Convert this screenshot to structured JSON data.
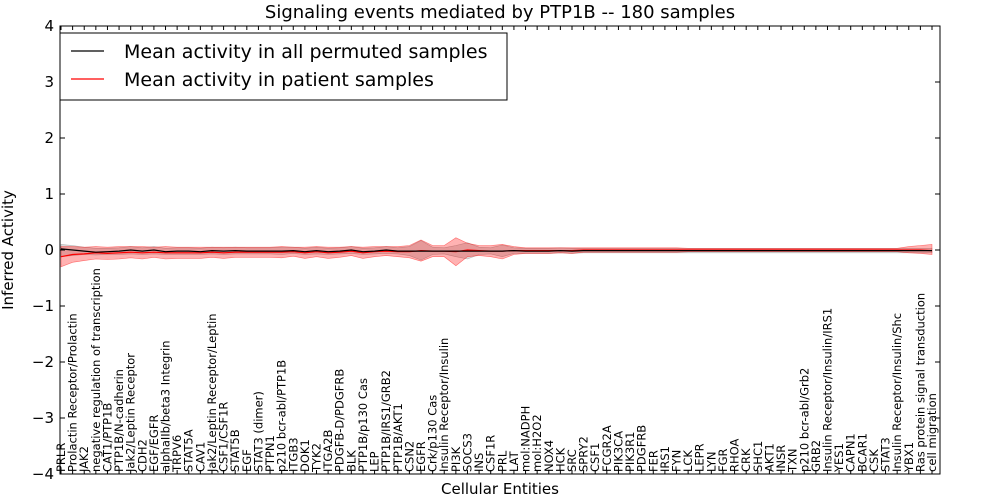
{
  "chart_data": {
    "type": "line",
    "title": "Signaling events mediated by PTP1B -- 180 samples",
    "xlabel": "Cellular Entities",
    "ylabel": "Inferred Activity",
    "ylim": [
      -4,
      4
    ],
    "yticks": [
      -4,
      -3,
      -2,
      -1,
      0,
      1,
      2,
      3,
      4
    ],
    "ytick_labels": [
      "−4",
      "−3",
      "−2",
      "−1",
      "0",
      "1",
      "2",
      "3",
      "4"
    ],
    "legend_position": "top-left",
    "grid": false,
    "categories": [
      "PRLR",
      "Prolactin Receptor/Prolactin",
      "JAK2",
      "negative regulation of transcription",
      "CAT1/PTP1B",
      "PTP1B/N-cadherin",
      "Jak2/Leptin Receptor",
      "CDH2",
      "EGF/EGFR",
      "alphaIIb/beta3 Integrin",
      "TRPV6",
      "STAT5A",
      "CAV1",
      "Jak2/Leptin Receptor/Leptin",
      "CSF1/CSF1R",
      "STAT5B",
      "EGF",
      "STAT3 (dimer)",
      "PTPN1",
      "p210 bcr-abl/PTP1B",
      "ITGB3",
      "DOK1",
      "TYK2",
      "ITGA2B",
      "PDGFB-D/PDGFRB",
      "BLK",
      "PTP1B/p130 Cas",
      "LEP",
      "PTP1B/IRS1/GRB2",
      "PTP1B/AKT1",
      "CSN2",
      "EGFR",
      "Crk/p130 Cas",
      "Insulin Receptor/Insulin",
      "PI3K",
      "SOCS3",
      "INS",
      "CSF1R",
      "PRL",
      "LAT",
      "mol:NADPH",
      "mol:H2O2",
      "NOX4",
      "HCK",
      "SRC",
      "SPRY2",
      "CSF1",
      "FCGR2A",
      "PIK3CA",
      "PIK3R1",
      "PDGFRB",
      "FER",
      "IRS1",
      "FYN",
      "LCK",
      "LEPR",
      "LYN",
      "FGR",
      "RHOA",
      "CRK",
      "SHC1",
      "AKT1",
      "INSR",
      "TXN",
      "p210 bcr-abl/Grb2",
      "GRB2",
      "Insulin Receptor/Insulin/IRS1",
      "YES1",
      "CAPN1",
      "BCAR1",
      "CSK",
      "STAT3",
      "Insulin Receptor/Insulin/Shc",
      "YBX1",
      "Ras protein signal transduction",
      "cell migration"
    ],
    "series": [
      {
        "name": "Mean activity in all permuted samples",
        "color": "#000000",
        "values": [
          0.02,
          0.0,
          -0.02,
          -0.04,
          -0.03,
          -0.02,
          0.0,
          -0.02,
          0.0,
          -0.03,
          -0.02,
          -0.02,
          -0.03,
          -0.01,
          -0.02,
          -0.01,
          -0.02,
          -0.02,
          -0.02,
          -0.02,
          -0.01,
          -0.03,
          -0.01,
          -0.03,
          -0.02,
          0.0,
          -0.03,
          -0.02,
          0.0,
          -0.02,
          -0.02,
          -0.02,
          -0.02,
          -0.02,
          -0.02,
          -0.02,
          -0.02,
          -0.02,
          -0.02,
          -0.01,
          -0.02,
          -0.02,
          -0.02,
          -0.01,
          -0.02,
          -0.01,
          -0.01,
          -0.01,
          -0.01,
          -0.01,
          -0.01,
          -0.01,
          -0.01,
          -0.01,
          -0.01,
          -0.01,
          -0.01,
          -0.01,
          -0.01,
          -0.01,
          -0.01,
          -0.01,
          -0.01,
          -0.01,
          -0.01,
          -0.01,
          -0.01,
          -0.01,
          -0.01,
          -0.01,
          -0.01,
          -0.01,
          -0.01,
          -0.01,
          -0.01,
          -0.01
        ],
        "lower": [
          -0.12,
          -0.1,
          -0.08,
          -0.09,
          -0.08,
          -0.08,
          -0.07,
          -0.08,
          -0.07,
          -0.08,
          -0.08,
          -0.08,
          -0.08,
          -0.07,
          -0.08,
          -0.07,
          -0.07,
          -0.07,
          -0.07,
          -0.08,
          -0.06,
          -0.08,
          -0.07,
          -0.08,
          -0.07,
          -0.06,
          -0.08,
          -0.07,
          -0.06,
          -0.07,
          -0.1,
          -0.18,
          -0.08,
          -0.07,
          -0.12,
          -0.16,
          -0.08,
          -0.07,
          -0.12,
          -0.06,
          -0.06,
          -0.06,
          -0.06,
          -0.05,
          -0.06,
          -0.05,
          -0.05,
          -0.05,
          -0.05,
          -0.05,
          -0.05,
          -0.05,
          -0.05,
          -0.05,
          -0.05,
          -0.05,
          -0.05,
          -0.05,
          -0.05,
          -0.05,
          -0.05,
          -0.05,
          -0.05,
          -0.05,
          -0.05,
          -0.05,
          -0.05,
          -0.05,
          -0.05,
          -0.05,
          -0.05,
          -0.05,
          -0.05,
          -0.05,
          -0.05,
          -0.05
        ],
        "upper": [
          0.1,
          0.08,
          0.05,
          0.03,
          0.03,
          0.04,
          0.06,
          0.04,
          0.06,
          0.03,
          0.04,
          0.04,
          0.03,
          0.05,
          0.04,
          0.05,
          0.04,
          0.04,
          0.04,
          0.05,
          0.05,
          0.03,
          0.05,
          0.03,
          0.04,
          0.06,
          0.03,
          0.04,
          0.06,
          0.04,
          0.06,
          0.17,
          0.05,
          0.04,
          0.08,
          0.13,
          0.05,
          0.04,
          0.09,
          0.04,
          0.03,
          0.03,
          0.03,
          0.04,
          0.03,
          0.03,
          0.03,
          0.03,
          0.03,
          0.03,
          0.03,
          0.03,
          0.03,
          0.03,
          0.03,
          0.03,
          0.03,
          0.03,
          0.03,
          0.03,
          0.03,
          0.03,
          0.03,
          0.03,
          0.03,
          0.03,
          0.03,
          0.03,
          0.03,
          0.03,
          0.03,
          0.03,
          0.03,
          0.03,
          0.03,
          0.03
        ]
      },
      {
        "name": "Mean activity in patient samples",
        "color": "#ff0000",
        "values": [
          -0.12,
          -0.08,
          -0.07,
          -0.05,
          -0.06,
          -0.05,
          -0.04,
          -0.05,
          -0.04,
          -0.05,
          -0.05,
          -0.05,
          -0.05,
          -0.04,
          -0.05,
          -0.04,
          -0.04,
          -0.04,
          -0.04,
          -0.04,
          -0.03,
          -0.05,
          -0.03,
          -0.05,
          -0.04,
          -0.02,
          -0.05,
          -0.03,
          -0.02,
          -0.03,
          -0.03,
          -0.01,
          -0.02,
          -0.02,
          -0.03,
          0.0,
          -0.01,
          -0.02,
          -0.02,
          -0.01,
          -0.01,
          -0.01,
          -0.01,
          -0.01,
          -0.01,
          0.0,
          0.0,
          0.0,
          0.0,
          0.0,
          0.0,
          0.0,
          0.0,
          0.0,
          0.0,
          0.0,
          0.0,
          0.0,
          0.0,
          0.0,
          0.0,
          0.0,
          0.0,
          0.0,
          0.0,
          0.0,
          0.0,
          0.0,
          0.0,
          0.0,
          0.0,
          0.0,
          0.0,
          0.0,
          0.0,
          -0.01
        ],
        "lower": [
          -0.3,
          -0.22,
          -0.19,
          -0.16,
          -0.17,
          -0.16,
          -0.14,
          -0.16,
          -0.13,
          -0.16,
          -0.15,
          -0.15,
          -0.15,
          -0.13,
          -0.15,
          -0.13,
          -0.13,
          -0.13,
          -0.13,
          -0.14,
          -0.11,
          -0.15,
          -0.12,
          -0.15,
          -0.13,
          -0.1,
          -0.15,
          -0.12,
          -0.1,
          -0.12,
          -0.14,
          -0.2,
          -0.12,
          -0.12,
          -0.28,
          -0.12,
          -0.1,
          -0.12,
          -0.16,
          -0.08,
          -0.06,
          -0.06,
          -0.06,
          -0.05,
          -0.06,
          -0.04,
          -0.04,
          -0.04,
          -0.04,
          -0.04,
          -0.04,
          -0.04,
          -0.04,
          -0.04,
          -0.03,
          -0.03,
          -0.03,
          -0.03,
          -0.03,
          -0.03,
          -0.03,
          -0.03,
          -0.03,
          -0.03,
          -0.03,
          -0.03,
          -0.03,
          -0.03,
          -0.03,
          -0.03,
          -0.03,
          -0.03,
          -0.03,
          -0.05,
          -0.06,
          -0.08
        ],
        "upper": [
          0.06,
          0.06,
          0.05,
          0.06,
          0.05,
          0.06,
          0.06,
          0.06,
          0.05,
          0.06,
          0.05,
          0.05,
          0.05,
          0.05,
          0.05,
          0.05,
          0.05,
          0.05,
          0.05,
          0.06,
          0.05,
          0.05,
          0.06,
          0.05,
          0.05,
          0.06,
          0.05,
          0.06,
          0.06,
          0.06,
          0.08,
          0.18,
          0.08,
          0.08,
          0.22,
          0.12,
          0.08,
          0.08,
          0.1,
          0.06,
          0.04,
          0.04,
          0.04,
          0.04,
          0.04,
          0.04,
          0.04,
          0.04,
          0.04,
          0.04,
          0.04,
          0.04,
          0.04,
          0.04,
          0.03,
          0.03,
          0.03,
          0.03,
          0.03,
          0.03,
          0.03,
          0.03,
          0.03,
          0.03,
          0.03,
          0.03,
          0.03,
          0.03,
          0.03,
          0.03,
          0.03,
          0.03,
          0.03,
          0.06,
          0.08,
          0.1
        ]
      }
    ]
  }
}
